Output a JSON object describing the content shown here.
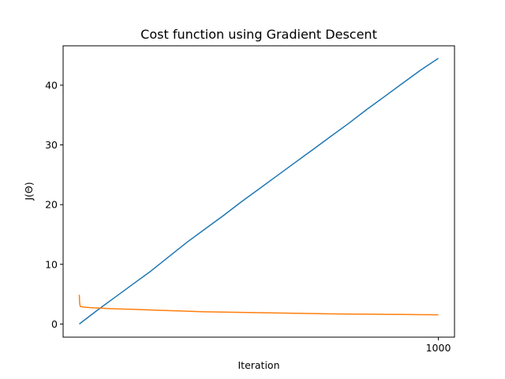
{
  "chart_data": {
    "type": "line",
    "title": "Cost function using Gradient Descent",
    "xlabel": "Iteration",
    "ylabel": "J(Θ)",
    "xlim": [
      -45,
      1045
    ],
    "ylim": [
      -2.2,
      46.6
    ],
    "x_ticks": [
      1000
    ],
    "x_tick_labels": [
      "1000"
    ],
    "y_ticks": [
      0,
      10,
      20,
      30,
      40
    ],
    "y_tick_labels": [
      "0",
      "10",
      "20",
      "30",
      "40"
    ],
    "grid": false,
    "legend": "none",
    "series": [
      {
        "color": "#1f77b4",
        "x": [
          0,
          50,
          100,
          150,
          200,
          250,
          300,
          350,
          400,
          450,
          500,
          550,
          600,
          650,
          700,
          750,
          800,
          850,
          900,
          950,
          1000
        ],
        "y": [
          0.0,
          2.3,
          4.5,
          6.7,
          8.9,
          11.3,
          13.7,
          15.9,
          18.1,
          20.4,
          22.6,
          24.8,
          27.0,
          29.2,
          31.4,
          33.6,
          35.9,
          38.1,
          40.3,
          42.5,
          44.5
        ]
      },
      {
        "color": "#ff7f0e",
        "x": [
          0,
          1,
          2,
          3,
          5,
          10,
          20,
          40,
          60,
          80,
          100,
          150,
          200,
          250,
          300,
          350,
          400,
          450,
          500,
          550,
          600,
          650,
          700,
          750,
          800,
          850,
          900,
          950,
          1000
        ],
        "y": [
          4.9,
          3.6,
          3.1,
          2.95,
          2.9,
          2.85,
          2.8,
          2.7,
          2.65,
          2.6,
          2.55,
          2.45,
          2.35,
          2.25,
          2.15,
          2.05,
          2.0,
          1.95,
          1.9,
          1.85,
          1.8,
          1.75,
          1.7,
          1.68,
          1.65,
          1.62,
          1.6,
          1.57,
          1.55
        ]
      }
    ]
  }
}
